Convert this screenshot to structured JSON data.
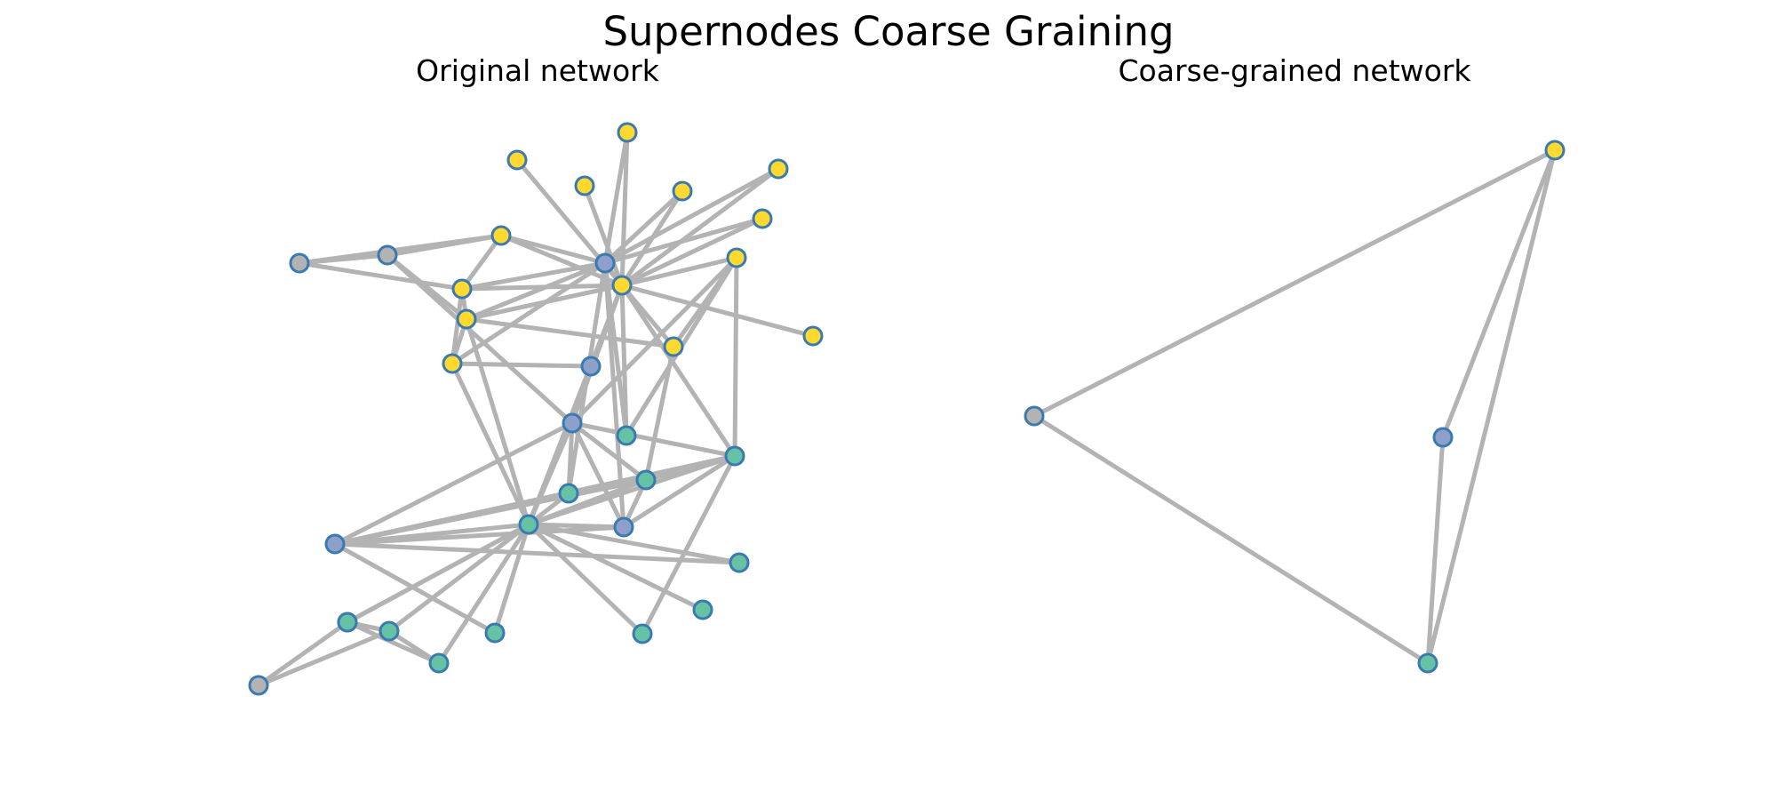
{
  "figure": {
    "title": "Supernodes Coarse Graining"
  },
  "colors": {
    "edge": "#b3b3b3",
    "node_outline": "#3a7ab0",
    "teal": "#66c2a5",
    "purple": "#8da0cb",
    "yellow": "#ffd92f",
    "gray": "#b3b3b3"
  },
  "panels": [
    {
      "id": "original",
      "title": "Original network",
      "nodes": [
        {
          "id": 0,
          "group": "yellow"
        },
        {
          "id": 1,
          "group": "yellow"
        },
        {
          "id": 2,
          "group": "yellow"
        },
        {
          "id": 3,
          "group": "yellow"
        },
        {
          "id": 4,
          "group": "yellow"
        },
        {
          "id": 5,
          "group": "yellow"
        },
        {
          "id": 6,
          "group": "gray"
        },
        {
          "id": 7,
          "group": "gray"
        },
        {
          "id": 8,
          "group": "yellow"
        },
        {
          "id": 9,
          "group": "purple"
        },
        {
          "id": 10,
          "group": "yellow"
        },
        {
          "id": 11,
          "group": "yellow"
        },
        {
          "id": 12,
          "group": "yellow"
        },
        {
          "id": 13,
          "group": "yellow"
        },
        {
          "id": 14,
          "group": "yellow"
        },
        {
          "id": 15,
          "group": "yellow"
        },
        {
          "id": 16,
          "group": "yellow"
        },
        {
          "id": 17,
          "group": "purple"
        },
        {
          "id": 18,
          "group": "teal"
        },
        {
          "id": 19,
          "group": "purple"
        },
        {
          "id": 20,
          "group": "teal"
        },
        {
          "id": 21,
          "group": "teal"
        },
        {
          "id": 22,
          "group": "teal"
        },
        {
          "id": 23,
          "group": "purple"
        },
        {
          "id": 24,
          "group": "teal"
        },
        {
          "id": 25,
          "group": "purple"
        },
        {
          "id": 26,
          "group": "teal"
        },
        {
          "id": 27,
          "group": "teal"
        },
        {
          "id": 28,
          "group": "teal"
        },
        {
          "id": 29,
          "group": "teal"
        },
        {
          "id": 30,
          "group": "teal"
        },
        {
          "id": 31,
          "group": "teal"
        },
        {
          "id": 32,
          "group": "teal"
        },
        {
          "id": 33,
          "group": "teal"
        },
        {
          "id": 34,
          "group": "gray"
        }
      ],
      "edges": [
        [
          0,
          11
        ],
        [
          1,
          11
        ],
        [
          1,
          9
        ],
        [
          2,
          11
        ],
        [
          3,
          9
        ],
        [
          3,
          11
        ],
        [
          4,
          9
        ],
        [
          4,
          11
        ],
        [
          5,
          9
        ],
        [
          5,
          11
        ],
        [
          15,
          11
        ],
        [
          6,
          7
        ],
        [
          6,
          8
        ],
        [
          6,
          10
        ],
        [
          7,
          8
        ],
        [
          7,
          12
        ],
        [
          7,
          19
        ],
        [
          8,
          9
        ],
        [
          8,
          10
        ],
        [
          8,
          11
        ],
        [
          10,
          9
        ],
        [
          10,
          11
        ],
        [
          10,
          12
        ],
        [
          10,
          13
        ],
        [
          9,
          11
        ],
        [
          9,
          12
        ],
        [
          9,
          13
        ],
        [
          9,
          18
        ],
        [
          9,
          22
        ],
        [
          9,
          23
        ],
        [
          11,
          12
        ],
        [
          11,
          18
        ],
        [
          11,
          14
        ],
        [
          11,
          16
        ],
        [
          11,
          19
        ],
        [
          11,
          21
        ],
        [
          11,
          24
        ],
        [
          12,
          13
        ],
        [
          12,
          24
        ],
        [
          12,
          16
        ],
        [
          13,
          17
        ],
        [
          13,
          24
        ],
        [
          14,
          18
        ],
        [
          14,
          16
        ],
        [
          14,
          19
        ],
        [
          14,
          21
        ],
        [
          16,
          20
        ],
        [
          17,
          19
        ],
        [
          17,
          24
        ],
        [
          19,
          20
        ],
        [
          19,
          21
        ],
        [
          19,
          22
        ],
        [
          19,
          23
        ],
        [
          19,
          25
        ],
        [
          19,
          24
        ],
        [
          20,
          21
        ],
        [
          20,
          23
        ],
        [
          20,
          24
        ],
        [
          20,
          22
        ],
        [
          20,
          25
        ],
        [
          21,
          23
        ],
        [
          21,
          24
        ],
        [
          21,
          25
        ],
        [
          22,
          24
        ],
        [
          23,
          24
        ],
        [
          23,
          25
        ],
        [
          24,
          26
        ],
        [
          24,
          27
        ],
        [
          24,
          28
        ],
        [
          24,
          29
        ],
        [
          24,
          30
        ],
        [
          24,
          31
        ],
        [
          24,
          32
        ],
        [
          24,
          33
        ],
        [
          24,
          25
        ],
        [
          25,
          26
        ],
        [
          25,
          29
        ],
        [
          21,
          28
        ],
        [
          30,
          31
        ],
        [
          30,
          34
        ],
        [
          31,
          32
        ],
        [
          31,
          34
        ],
        [
          32,
          33
        ]
      ]
    },
    {
      "id": "coarse",
      "title": "Coarse-grained network",
      "nodes": [
        {
          "id": "Y",
          "group": "yellow"
        },
        {
          "id": "G",
          "group": "gray"
        },
        {
          "id": "P",
          "group": "purple"
        },
        {
          "id": "T",
          "group": "teal"
        }
      ],
      "edges": [
        [
          "Y",
          "G"
        ],
        [
          "Y",
          "P"
        ],
        [
          "Y",
          "T"
        ],
        [
          "G",
          "T"
        ],
        [
          "P",
          "T"
        ]
      ]
    }
  ]
}
